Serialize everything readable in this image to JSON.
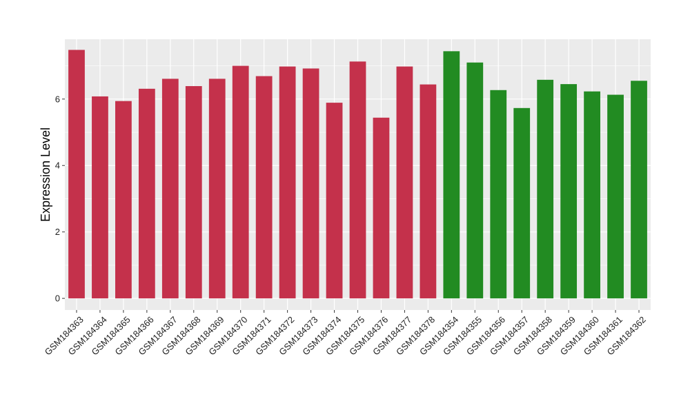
{
  "chart_data": {
    "type": "bar",
    "title": "",
    "xlabel": "",
    "ylabel": "Expression Level",
    "ylim": [
      -0.35,
      7.8
    ],
    "yticks": [
      0,
      2,
      4,
      6
    ],
    "grid": true,
    "legend": "none",
    "categories": [
      "GSM184363",
      "GSM184364",
      "GSM184365",
      "GSM184366",
      "GSM184367",
      "GSM184368",
      "GSM184369",
      "GSM184370",
      "GSM184371",
      "GSM184372",
      "GSM184373",
      "GSM184374",
      "GSM184375",
      "GSM184376",
      "GSM184377",
      "GSM184378",
      "GSM184354",
      "GSM184355",
      "GSM184356",
      "GSM184357",
      "GSM184358",
      "GSM184359",
      "GSM184360",
      "GSM184361",
      "GSM184362"
    ],
    "values": [
      7.48,
      6.08,
      5.94,
      6.31,
      6.61,
      6.39,
      6.61,
      7.0,
      6.69,
      6.98,
      6.92,
      5.89,
      7.13,
      5.44,
      6.98,
      6.44,
      7.44,
      7.1,
      6.27,
      5.73,
      6.58,
      6.45,
      6.23,
      6.13,
      6.55
    ],
    "groups": [
      "red",
      "red",
      "red",
      "red",
      "red",
      "red",
      "red",
      "red",
      "red",
      "red",
      "red",
      "red",
      "red",
      "red",
      "red",
      "red",
      "green",
      "green",
      "green",
      "green",
      "green",
      "green",
      "green",
      "green",
      "green"
    ],
    "colors": {
      "red": "#C4314B",
      "green": "#228B22",
      "panel": "#EBEBEB",
      "grid": "#FFFFFF",
      "text": "#000000"
    }
  }
}
